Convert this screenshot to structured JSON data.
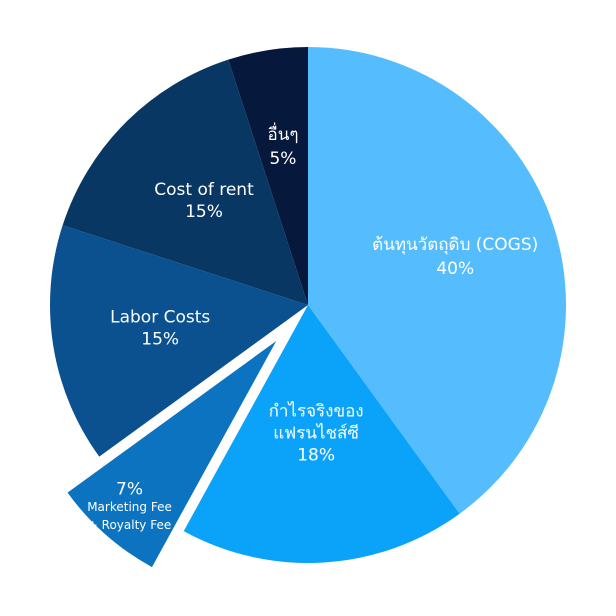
{
  "chart_data": {
    "type": "pie",
    "title": "",
    "start_angle_deg": 0,
    "direction": "clockwise",
    "slices": [
      {
        "lines": [
          "ต้นทุนวัตถุดิบ (COGS)",
          "40%"
        ],
        "value": 40,
        "color": "#55bdfd",
        "exploded": false
      },
      {
        "lines": [
          "กำไรจริงของ",
          "แฟรนไชส์ซี",
          "18%"
        ],
        "value": 18,
        "color": "#0ba3fa",
        "exploded": false
      },
      {
        "lines": [
          "7%",
          "Marketing Fee",
          "+ Royalty Fee"
        ],
        "value": 7,
        "color": "#0b73c0",
        "exploded": true
      },
      {
        "lines": [
          "Labor Costs",
          "15%"
        ],
        "value": 15,
        "color": "#0b508f",
        "exploded": false
      },
      {
        "lines": [
          "Cost of rent",
          "15%"
        ],
        "value": 15,
        "color": "#093764",
        "exploded": false
      },
      {
        "lines": [
          "อื่นๆ",
          "5%"
        ],
        "value": 5,
        "color": "#06193c",
        "exploded": false
      }
    ]
  }
}
